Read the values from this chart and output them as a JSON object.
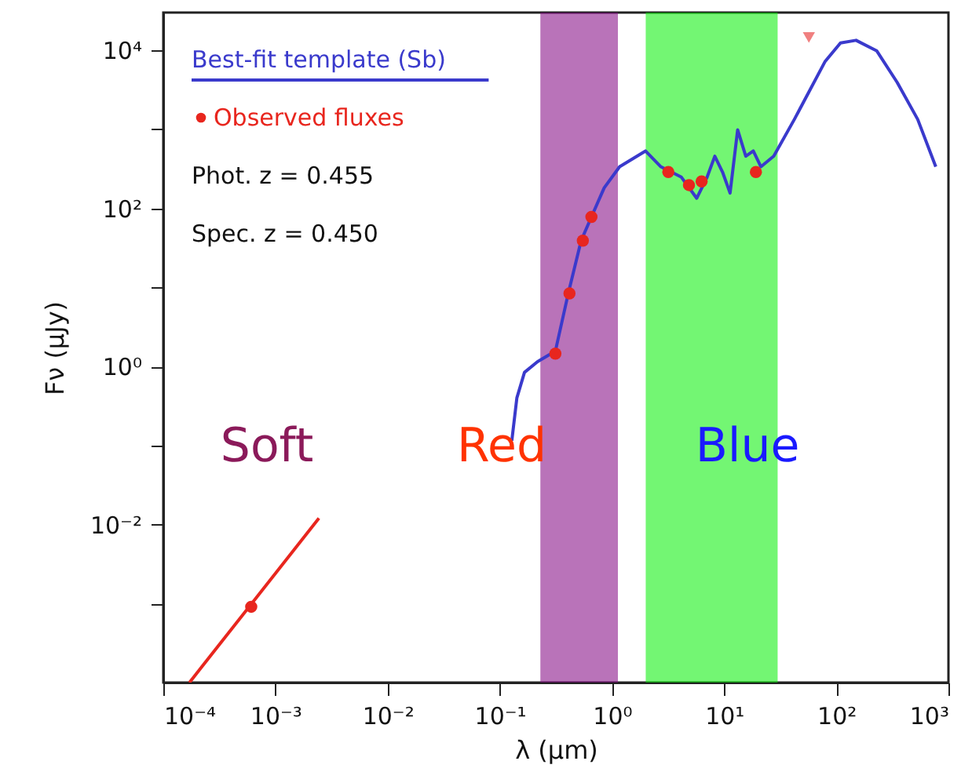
{
  "chart_data": {
    "type": "line",
    "xlabel": "λ (μm)",
    "ylabel": "Fν (μJy)",
    "log": "xy",
    "grid": false,
    "legend": "top left",
    "xlim": [
      0.0001,
      1000
    ],
    "ylim": [
      0.0001,
      30000
    ],
    "xticks": [
      {
        "value": 0.0001,
        "label": "10⁻⁴"
      },
      {
        "value": 0.001,
        "label": "10⁻³"
      },
      {
        "value": 0.01,
        "label": "10⁻²"
      },
      {
        "value": 0.1,
        "label": "10⁻¹"
      },
      {
        "value": 1,
        "label": "10⁰"
      },
      {
        "value": 10,
        "label": "10¹"
      },
      {
        "value": 100,
        "label": "10²"
      },
      {
        "value": 1000,
        "label": "10³"
      }
    ],
    "yticks": [
      {
        "value": 0.001,
        "label": null
      },
      {
        "value": 0.01,
        "label": "10⁻²"
      },
      {
        "value": 0.1,
        "label": null
      },
      {
        "value": 1,
        "label": "10⁰"
      },
      {
        "value": 10,
        "label": null
      },
      {
        "value": 100,
        "label": "10²"
      },
      {
        "value": 1000,
        "label": null
      },
      {
        "value": 10000,
        "label": "10⁴"
      }
    ],
    "series": [
      {
        "name": "Best-fit template (Sb)",
        "color": "#3a3acc",
        "marker": "none",
        "line_style": "solid",
        "x": [
          0.128,
          0.142,
          0.166,
          0.217,
          0.313,
          0.408,
          0.531,
          0.656,
          0.853,
          1.17,
          1.99,
          2.73,
          4.16,
          5.7,
          7.05,
          8.26,
          9.68,
          11.3,
          13.2,
          15.6,
          18.2,
          21.3,
          27.7,
          42.3,
          79.6,
          109,
          150,
          229,
          349,
          532,
          771
        ],
        "values": [
          0.115,
          0.4,
          0.84,
          1.15,
          1.56,
          8.4,
          39,
          78,
          182,
          336,
          532,
          336,
          248,
          134,
          248,
          457,
          288,
          156,
          986,
          457,
          532,
          336,
          457,
          1337,
          7244,
          12400,
          13370,
          9860,
          3926,
          1337,
          336
        ]
      },
      {
        "name": "Observed fluxes",
        "type": "scatter",
        "color": "#e8261e",
        "marker": "circle",
        "x": [
          0.000608,
          0.313,
          0.418,
          0.55,
          0.656,
          3.18,
          4.86,
          6.3,
          19.2
        ],
        "values": [
          0.00091,
          1.45,
          8.4,
          39,
          78,
          288,
          197,
          219,
          288
        ]
      },
      {
        "color": "#e8261e",
        "marker": "none",
        "line_style": "solid",
        "x": [
          0.000171,
          0.00244
        ],
        "values": [
          0.0001,
          0.012
        ]
      },
      {
        "type": "scatter",
        "color": "#f08080",
        "marker": "triangle",
        "x": [
          57
        ],
        "values": [
          14500
        ]
      }
    ],
    "bands": [
      {
        "axis": "x",
        "from": 0.23,
        "to": 1.13,
        "color": "#800080"
      },
      {
        "axis": "x",
        "from": 2,
        "to": 30,
        "color": "#00ee00"
      }
    ],
    "annotations": [
      "Phot. z = 0.455",
      "Spec. z = 0.450",
      "Soft",
      "Red",
      "Blue"
    ]
  }
}
